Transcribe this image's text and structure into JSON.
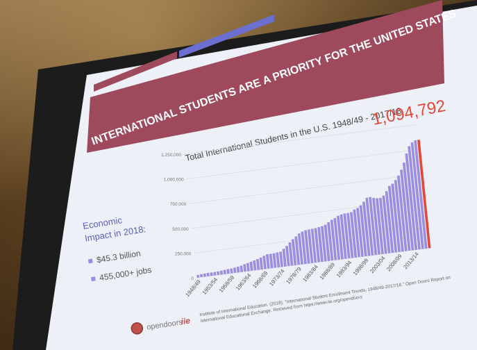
{
  "slide": {
    "title": "INTERNATIONAL STUDENTS ARE A PRIORITY FOR THE UNITED STATES",
    "sidebar": {
      "heading_line1": "Economic",
      "heading_line2": "Impact in 2018:",
      "bullets": [
        "$45.3 billion",
        "455,000+ jobs"
      ]
    },
    "citation_line1": "Institute of International Education. (2018). \"International Student Enrollment Trends, 1948/49-2017/18.\" Open Doors Report on",
    "citation_line2": "International Educational Exchange. Retrieved from https://www.iie.org/opendoors",
    "logos": [
      "opendoors",
      "iie"
    ]
  },
  "colors": {
    "maroon": "#9e4a5c",
    "blue_accent": "#6b6fd0",
    "bar": "#9b8ee0",
    "highlight": "#e04a3a",
    "slide_bg": "#f3f4fb"
  },
  "chart_data": {
    "type": "bar",
    "title": "Total International Students in the U.S. 1948/49 - 2017/18",
    "callout": "1,094,792",
    "ylim": [
      0,
      1250000
    ],
    "y_ticks": [
      "0",
      "250,000",
      "500,000",
      "750,000",
      "1,000,000",
      "1,250,000"
    ],
    "x_tick_labels": [
      "1948/49",
      "1953/54",
      "1958/59",
      "1963/64",
      "1968/69",
      "1973/74",
      "1978/79",
      "1983/84",
      "1988/89",
      "1993/94",
      "1998/99",
      "2003/04",
      "2008/09",
      "2013/14"
    ],
    "values": [
      26000,
      30000,
      31000,
      34000,
      34000,
      35000,
      36000,
      40000,
      43000,
      47000,
      48000,
      53000,
      58000,
      64000,
      75000,
      82000,
      91000,
      100000,
      110000,
      121000,
      134000,
      145000,
      144000,
      146000,
      150000,
      154000,
      179000,
      203000,
      235000,
      263000,
      286000,
      312000,
      326000,
      337000,
      339000,
      342000,
      344000,
      350000,
      356000,
      366000,
      387000,
      407000,
      420000,
      439000,
      449000,
      453000,
      454000,
      458000,
      481000,
      491000,
      515000,
      548000,
      583000,
      586000,
      573000,
      565000,
      565000,
      583000,
      624000,
      672000,
      691000,
      723000,
      764000,
      819000,
      886000,
      975000,
      1044000,
      1079000,
      1095000,
      1094792
    ]
  }
}
